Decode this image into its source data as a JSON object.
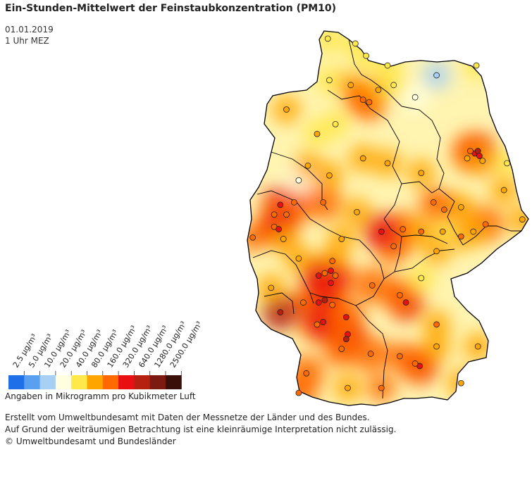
{
  "title": "Ein-Stunden-Mittelwert der Feinstaubkonzentration (PM10)",
  "date": "01.01.2019",
  "time": "1 Uhr MEZ",
  "legend": {
    "ticks": [
      "2.5 µg/m³",
      "5.0 µg/m³",
      "10.0 µg/m³",
      "20.0 µg/m³",
      "40.0 µg/m³",
      "80.0 µg/m³",
      "160.0 µg/m³",
      "320.0 µg/m³",
      "640.0 µg/m³",
      "1280.0 µg/m³",
      "2500.0 µg/m³"
    ],
    "colors": [
      "#1f6fe8",
      "#5aa0f0",
      "#a8d0f5",
      "#ffffe0",
      "#ffe84a",
      "#ffa500",
      "#ff6a00",
      "#e81010",
      "#b52010",
      "#7a1a10",
      "#3a0f08"
    ],
    "unit_note": "Angaben in Mikrogramm pro Kubikmeter Luft"
  },
  "footer": {
    "line1": "Erstellt vom Umweltbundesamt mit Daten der Messnetze der Länder und des Bundes.",
    "line2": "Auf Grund der weiträumigen Betrachtung ist eine kleinräumige Interpretation nicht zulässig.",
    "line3": "© Umweltbundesamt und Bundesländer"
  },
  "stations": [
    {
      "lon": 8.55,
      "lat": 54.85,
      "v": 30
    },
    {
      "lon": 9.45,
      "lat": 54.75,
      "v": 30
    },
    {
      "lon": 10.5,
      "lat": 54.3,
      "v": 30
    },
    {
      "lon": 9.8,
      "lat": 54.5,
      "v": 25
    },
    {
      "lon": 8.6,
      "lat": 54.0,
      "v": 30
    },
    {
      "lon": 9.3,
      "lat": 53.9,
      "v": 60
    },
    {
      "lon": 9.9,
      "lat": 53.55,
      "v": 150
    },
    {
      "lon": 9.7,
      "lat": 53.6,
      "v": 110
    },
    {
      "lon": 10.2,
      "lat": 53.8,
      "v": 60
    },
    {
      "lon": 10.7,
      "lat": 53.9,
      "v": 35
    },
    {
      "lon": 11.4,
      "lat": 53.65,
      "v": 15
    },
    {
      "lon": 12.1,
      "lat": 54.1,
      "v": 10
    },
    {
      "lon": 13.4,
      "lat": 54.3,
      "v": 30
    },
    {
      "lon": 8.8,
      "lat": 53.1,
      "v": 40
    },
    {
      "lon": 7.2,
      "lat": 53.4,
      "v": 80
    },
    {
      "lon": 8.2,
      "lat": 52.9,
      "v": 45
    },
    {
      "lon": 9.7,
      "lat": 52.4,
      "v": 60
    },
    {
      "lon": 10.5,
      "lat": 52.3,
      "v": 50
    },
    {
      "lon": 11.6,
      "lat": 52.1,
      "v": 60
    },
    {
      "lon": 13.1,
      "lat": 52.4,
      "v": 80
    },
    {
      "lon": 13.35,
      "lat": 52.5,
      "v": 250
    },
    {
      "lon": 13.45,
      "lat": 52.55,
      "v": 350
    },
    {
      "lon": 13.5,
      "lat": 52.45,
      "v": 200
    },
    {
      "lon": 13.2,
      "lat": 52.55,
      "v": 150
    },
    {
      "lon": 13.6,
      "lat": 52.35,
      "v": 80
    },
    {
      "lon": 14.4,
      "lat": 52.3,
      "v": 40
    },
    {
      "lon": 12.0,
      "lat": 51.5,
      "v": 100
    },
    {
      "lon": 12.35,
      "lat": 51.35,
      "v": 150
    },
    {
      "lon": 12.9,
      "lat": 51.4,
      "v": 60
    },
    {
      "lon": 14.3,
      "lat": 51.75,
      "v": 70
    },
    {
      "lon": 13.7,
      "lat": 51.05,
      "v": 120
    },
    {
      "lon": 12.9,
      "lat": 50.8,
      "v": 90
    },
    {
      "lon": 13.3,
      "lat": 50.9,
      "v": 60
    },
    {
      "lon": 14.9,
      "lat": 51.15,
      "v": 60
    },
    {
      "lon": 12.3,
      "lat": 50.9,
      "v": 45
    },
    {
      "lon": 11.0,
      "lat": 50.95,
      "v": 120
    },
    {
      "lon": 11.6,
      "lat": 50.9,
      "v": 90
    },
    {
      "lon": 12.1,
      "lat": 50.5,
      "v": 50
    },
    {
      "lon": 10.7,
      "lat": 50.6,
      "v": 120
    },
    {
      "lon": 10.3,
      "lat": 50.9,
      "v": 200
    },
    {
      "lon": 9.5,
      "lat": 51.3,
      "v": 70
    },
    {
      "lon": 8.4,
      "lat": 51.5,
      "v": 120
    },
    {
      "lon": 7.45,
      "lat": 51.5,
      "v": 120
    },
    {
      "lon": 7.0,
      "lat": 51.45,
      "v": 200
    },
    {
      "lon": 6.8,
      "lat": 51.25,
      "v": 100
    },
    {
      "lon": 7.2,
      "lat": 51.25,
      "v": 150
    },
    {
      "lon": 6.8,
      "lat": 51.0,
      "v": 120
    },
    {
      "lon": 6.95,
      "lat": 50.95,
      "v": 200
    },
    {
      "lon": 7.1,
      "lat": 50.75,
      "v": 80
    },
    {
      "lon": 6.1,
      "lat": 50.78,
      "v": 100
    },
    {
      "lon": 7.6,
      "lat": 51.95,
      "v": 20
    },
    {
      "lon": 7.9,
      "lat": 52.25,
      "v": 50
    },
    {
      "lon": 8.6,
      "lat": 52.05,
      "v": 60
    },
    {
      "lon": 9.0,
      "lat": 50.75,
      "v": 60
    },
    {
      "lon": 8.65,
      "lat": 50.1,
      "v": 220
    },
    {
      "lon": 8.45,
      "lat": 50.05,
      "v": 150
    },
    {
      "lon": 8.25,
      "lat": 50.0,
      "v": 300
    },
    {
      "lon": 8.8,
      "lat": 50.0,
      "v": 150
    },
    {
      "lon": 8.7,
      "lat": 50.3,
      "v": 90
    },
    {
      "lon": 8.65,
      "lat": 49.85,
      "v": 250
    },
    {
      "lon": 8.45,
      "lat": 49.5,
      "v": 350
    },
    {
      "lon": 8.7,
      "lat": 49.4,
      "v": 150
    },
    {
      "lon": 8.25,
      "lat": 49.45,
      "v": 250
    },
    {
      "lon": 7.75,
      "lat": 49.45,
      "v": 100
    },
    {
      "lon": 7.0,
      "lat": 49.25,
      "v": 400
    },
    {
      "lon": 6.7,
      "lat": 49.75,
      "v": 80
    },
    {
      "lon": 7.6,
      "lat": 50.35,
      "v": 60
    },
    {
      "lon": 8.2,
      "lat": 49.0,
      "v": 150
    },
    {
      "lon": 8.4,
      "lat": 49.05,
      "v": 300
    },
    {
      "lon": 9.2,
      "lat": 48.8,
      "v": 200
    },
    {
      "lon": 9.15,
      "lat": 48.7,
      "v": 350
    },
    {
      "lon": 9.0,
      "lat": 48.5,
      "v": 120
    },
    {
      "lon": 9.95,
      "lat": 48.4,
      "v": 120
    },
    {
      "lon": 10.9,
      "lat": 48.35,
      "v": 100
    },
    {
      "lon": 11.55,
      "lat": 48.15,
      "v": 300
    },
    {
      "lon": 11.4,
      "lat": 48.2,
      "v": 120
    },
    {
      "lon": 12.1,
      "lat": 48.55,
      "v": 80
    },
    {
      "lon": 12.1,
      "lat": 49.0,
      "v": 90
    },
    {
      "lon": 11.1,
      "lat": 49.45,
      "v": 250
    },
    {
      "lon": 10.9,
      "lat": 49.6,
      "v": 120
    },
    {
      "lon": 11.6,
      "lat": 49.95,
      "v": 30
    },
    {
      "lon": 10.0,
      "lat": 49.8,
      "v": 150
    },
    {
      "lon": 9.15,
      "lat": 49.15,
      "v": 180
    },
    {
      "lon": 7.85,
      "lat": 48.0,
      "v": 150
    },
    {
      "lon": 7.6,
      "lat": 47.6,
      "v": 150
    },
    {
      "lon": 9.2,
      "lat": 47.7,
      "v": 80
    },
    {
      "lon": 10.3,
      "lat": 47.7,
      "v": 100
    },
    {
      "lon": 13.45,
      "lat": 48.55,
      "v": 60
    },
    {
      "lon": 12.9,
      "lat": 47.8,
      "v": 60
    }
  ]
}
